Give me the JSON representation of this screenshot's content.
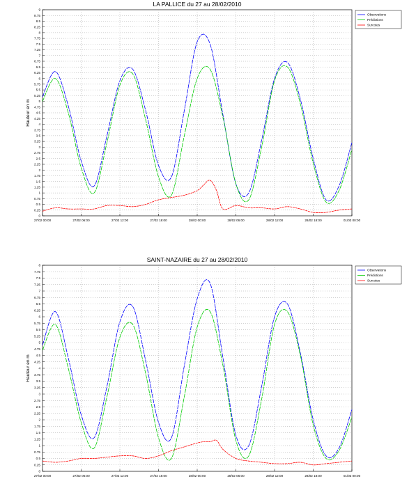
{
  "chart_data": [
    {
      "type": "line",
      "title": "LA PALLICE du 27 au 28/02/2010",
      "ylabel": "Hauteur en m",
      "xlabel": "",
      "ylim": [
        0,
        9
      ],
      "yticks": [
        "0",
        "0.25",
        "0.5",
        "0.75",
        "1",
        "1.25",
        "1.5",
        "1.75",
        "2",
        "2.25",
        "2.5",
        "2.75",
        "3",
        "3.25",
        "3.5",
        "3.75",
        "4",
        "4.25",
        "4.5",
        "4.75",
        "5",
        "5.25",
        "5.5",
        "5.75",
        "6",
        "6.25",
        "6.5",
        "6.75",
        "7",
        "7.25",
        "7.5",
        "7.75",
        "8",
        "8.25",
        "8.5",
        "8.75",
        "9"
      ],
      "xlim": [
        0,
        48
      ],
      "xticks": [
        "27/02 00:00",
        "27/02 06:00",
        "27/02 12:00",
        "27/02 18:00",
        "28/02 00:00",
        "28/02 06:00",
        "28/02 12:00",
        "28/02 18:00",
        "01/03 00:00"
      ],
      "grid": true,
      "legend_position": "top-right",
      "series": [
        {
          "name": "Observations",
          "color": "#0000ff",
          "x": [
            0,
            2,
            4,
            6,
            8,
            10,
            12,
            14,
            16,
            18,
            20,
            22,
            24,
            26,
            28,
            30,
            32,
            34,
            36,
            38,
            40,
            42,
            44,
            46,
            48
          ],
          "y": [
            5.2,
            6.3,
            4.8,
            2.4,
            1.3,
            3.5,
            5.9,
            6.4,
            4.6,
            2.2,
            1.7,
            4.6,
            7.6,
            7.5,
            4.4,
            1.4,
            1.0,
            3.3,
            6.0,
            6.7,
            5.1,
            2.5,
            0.7,
            1.3,
            3.2
          ]
        },
        {
          "name": "Prédictions",
          "color": "#00cc00",
          "x": [
            0,
            2,
            4,
            6,
            8,
            10,
            12,
            14,
            16,
            18,
            20,
            22,
            24,
            26,
            28,
            30,
            32,
            34,
            36,
            38,
            40,
            42,
            44,
            46,
            48
          ],
          "y": [
            5.0,
            6.0,
            4.5,
            2.1,
            1.0,
            3.2,
            5.7,
            6.2,
            4.2,
            1.7,
            0.9,
            3.5,
            6.0,
            6.4,
            4.3,
            1.4,
            0.7,
            3.0,
            5.9,
            6.5,
            4.9,
            2.3,
            0.6,
            1.1,
            2.9
          ]
        },
        {
          "name": "Surcotes",
          "color": "#ff0000",
          "x": [
            0,
            2,
            4,
            6,
            8,
            10,
            12,
            14,
            16,
            18,
            20,
            22,
            24,
            25,
            26,
            27,
            28,
            30,
            32,
            34,
            36,
            38,
            40,
            42,
            44,
            46,
            48
          ],
          "y": [
            0.2,
            0.35,
            0.3,
            0.3,
            0.3,
            0.45,
            0.45,
            0.4,
            0.5,
            0.7,
            0.8,
            0.9,
            1.1,
            1.35,
            1.55,
            1.1,
            0.3,
            0.45,
            0.35,
            0.35,
            0.3,
            0.4,
            0.3,
            0.15,
            0.15,
            0.25,
            0.3
          ]
        }
      ]
    },
    {
      "type": "line",
      "title": "SAINT-NAZAIRE du 27 au 28/02/2010",
      "ylabel": "Hauteur en m",
      "xlabel": "",
      "ylim": [
        0,
        8
      ],
      "yticks": [
        "0",
        "0.25",
        "0.5",
        "0.75",
        "1",
        "1.25",
        "1.5",
        "1.75",
        "2",
        "2.25",
        "2.5",
        "2.75",
        "3",
        "3.25",
        "3.5",
        "3.75",
        "4",
        "4.25",
        "4.5",
        "4.75",
        "5",
        "5.25",
        "5.5",
        "5.75",
        "6",
        "6.25",
        "6.5",
        "6.75",
        "7",
        "7.25",
        "7.5",
        "7.75",
        "8"
      ],
      "xlim": [
        0,
        48
      ],
      "xticks": [
        "27/02 00:00",
        "27/02 06:00",
        "27/02 12:00",
        "27/02 18:00",
        "28/02 00:00",
        "28/02 06:00",
        "28/02 12:00",
        "28/02 18:00",
        "01/03 00:00"
      ],
      "grid": true,
      "legend_position": "top-right",
      "series": [
        {
          "name": "Observations",
          "color": "#0000ff",
          "x": [
            0,
            2,
            4,
            6,
            8,
            10,
            12,
            14,
            16,
            18,
            20,
            22,
            24,
            26,
            28,
            30,
            32,
            34,
            36,
            38,
            40,
            42,
            44,
            46,
            48
          ],
          "y": [
            4.9,
            6.2,
            4.4,
            2.2,
            1.3,
            3.3,
            5.8,
            6.4,
            4.3,
            1.9,
            1.3,
            4.1,
            6.7,
            7.3,
            4.4,
            1.4,
            1.0,
            3.3,
            6.0,
            6.5,
            4.6,
            2.0,
            0.6,
            0.9,
            2.4
          ]
        },
        {
          "name": "Prédictions",
          "color": "#00cc00",
          "x": [
            0,
            2,
            4,
            6,
            8,
            10,
            12,
            14,
            16,
            18,
            20,
            22,
            24,
            26,
            28,
            30,
            32,
            34,
            36,
            38,
            40,
            42,
            44,
            46,
            48
          ],
          "y": [
            4.7,
            5.7,
            4.0,
            1.9,
            0.9,
            2.9,
            5.2,
            5.7,
            3.8,
            1.3,
            0.5,
            2.9,
            5.6,
            6.2,
            4.1,
            1.2,
            0.6,
            2.8,
            5.7,
            6.2,
            4.5,
            1.8,
            0.5,
            0.8,
            2.1
          ]
        },
        {
          "name": "Surcotes",
          "color": "#ff0000",
          "x": [
            0,
            2,
            4,
            6,
            8,
            10,
            12,
            14,
            16,
            18,
            20,
            22,
            24,
            25,
            26,
            27,
            28,
            30,
            32,
            34,
            36,
            38,
            40,
            42,
            44,
            46,
            48
          ],
          "y": [
            0.4,
            0.35,
            0.4,
            0.5,
            0.5,
            0.55,
            0.6,
            0.6,
            0.5,
            0.6,
            0.8,
            0.95,
            1.1,
            1.15,
            1.15,
            1.2,
            0.85,
            0.5,
            0.4,
            0.35,
            0.3,
            0.3,
            0.35,
            0.25,
            0.3,
            0.35,
            0.4
          ]
        }
      ]
    }
  ]
}
